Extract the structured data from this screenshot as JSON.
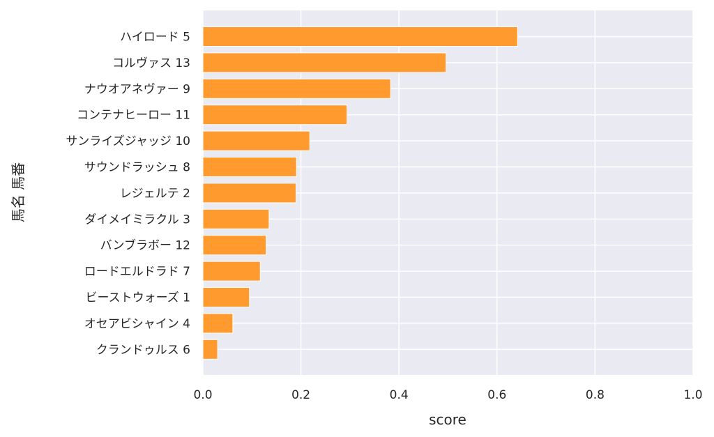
{
  "chart_data": {
    "type": "bar",
    "orientation": "horizontal",
    "xlabel": "score",
    "ylabel": "馬名 馬番",
    "xlim": [
      0.0,
      1.0
    ],
    "xticks": [
      "0.0",
      "0.2",
      "0.4",
      "0.6",
      "0.8",
      "1.0"
    ],
    "grid": true,
    "bar_color": "#ff9a2e",
    "background": "#eaeaf2",
    "categories": [
      "ハイロード 5",
      "コルヴァス 13",
      "ナウオアネヴァー 9",
      "コンテナヒーロー 11",
      "サンライズジャッジ 10",
      "サウンドラッシュ 8",
      "レジェルテ 2",
      "ダイメイミラクル 3",
      "バンブラボー 12",
      "ロードエルドラド 7",
      "ビーストウォーズ 1",
      "オセアビシャイン 4",
      "クランドゥルス 6"
    ],
    "values": [
      0.642,
      0.496,
      0.383,
      0.294,
      0.218,
      0.191,
      0.19,
      0.135,
      0.129,
      0.117,
      0.095,
      0.061,
      0.03
    ]
  }
}
